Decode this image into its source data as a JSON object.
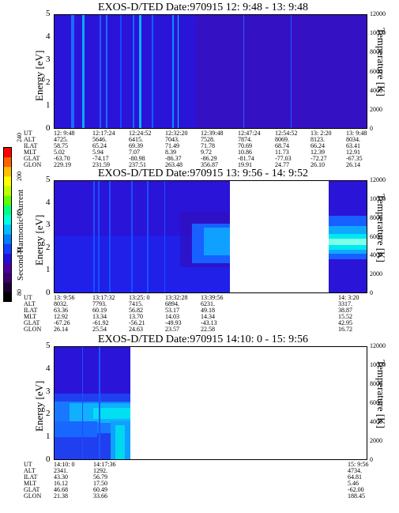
{
  "chart_data": [
    {
      "type": "heatmap",
      "title": "EXOS-D/TED   Date:970915  12: 9:48 - 13: 9:48",
      "ylabel": "Energy [eV]",
      "ylabel_right": "Temperature [K]",
      "ylim": [
        0,
        5
      ],
      "yticks": [
        "0",
        "1",
        "2",
        "3",
        "4",
        "5"
      ],
      "ylim_right": [
        0,
        12000
      ],
      "yticks_right": [
        "0",
        "2000",
        "4000",
        "6000",
        "8000",
        "10000",
        "12000"
      ],
      "orbit_labels": [
        "UT",
        "ALT",
        "ILAT",
        "MLT",
        "GLAT",
        "GLON"
      ],
      "orbit_columns": [
        [
          "12: 9:48",
          "4725.",
          "58.75",
          "5.02",
          "-63.70",
          "229.19"
        ],
        [
          "12:17:24",
          "5646.",
          "65.24",
          "5.94",
          "-74.17",
          "231.59"
        ],
        [
          "12:24:52",
          "6415.",
          "69.39",
          "7.07",
          "-80.98",
          "237.51"
        ],
        [
          "12:32:20",
          "7043.",
          "71.49",
          "8.39",
          "-86.37",
          "263.48"
        ],
        [
          "12:39:48",
          "7528.",
          "71.78",
          "9.72",
          "-86.29",
          "356.87"
        ],
        [
          "12:47:24",
          "7874.",
          "70.69",
          "10.86",
          "-81.74",
          "19.91"
        ],
        [
          "12:54:52",
          "8069.",
          "68.74",
          "11.73",
          "-77.03",
          "24.77"
        ],
        [
          "13: 2:20",
          "8123.",
          "66.24",
          "12.39",
          "-72.27",
          "26.10"
        ],
        [
          "13: 9:48",
          "8034.",
          "63.41",
          "12.91",
          "-67.35",
          "26.14"
        ]
      ]
    },
    {
      "type": "heatmap",
      "title": "EXOS-D/TED   Date:970915  13: 9:56 - 14: 9:52",
      "ylabel": "Energy [eV]",
      "ylabel_right": "Temperature [K]",
      "ylim": [
        0,
        5
      ],
      "yticks": [
        "0",
        "1",
        "2",
        "3",
        "4",
        "5"
      ],
      "ylim_right": [
        0,
        12000
      ],
      "yticks_right": [
        "0",
        "2000",
        "4000",
        "6000",
        "8000",
        "10000",
        "12000"
      ],
      "orbit_labels": [
        "UT",
        "ALT",
        "ILAT",
        "MLT",
        "GLAT",
        "GLON"
      ],
      "orbit_columns": [
        [
          "13: 9:56",
          "8032.",
          "63.36",
          "12.92",
          "-67.26",
          "26.14"
        ],
        [
          "13:17:32",
          "7793.",
          "60.19",
          "13.34",
          "-61.92",
          "25.54"
        ],
        [
          "13:25: 0",
          "7415.",
          "56.82",
          "13.70",
          "-56.21",
          "24.63"
        ],
        [
          "13:32:28",
          "6894.",
          "53.17",
          "14.03",
          "-49.93",
          "23.57"
        ],
        [
          "13:39:56",
          "6231.",
          "49.18",
          "14.34",
          "-43.13",
          "22.58"
        ],
        [
          "14: 3:20",
          "3317.",
          "38.87",
          "15.52",
          "42.95",
          "16.72"
        ]
      ]
    },
    {
      "type": "heatmap",
      "title": "EXOS-D/TED   Date:970915  14:10: 0 - 15: 9:56",
      "ylabel": "Energy [eV]",
      "ylabel_right": "Temperature [K]",
      "ylim": [
        0,
        5
      ],
      "yticks": [
        "0",
        "1",
        "2",
        "3",
        "4",
        "5"
      ],
      "ylim_right": [
        0,
        12000
      ],
      "yticks_right": [
        "0",
        "2000",
        "4000",
        "6000",
        "8000",
        "10000",
        "12000"
      ],
      "orbit_labels": [
        "UT",
        "ALT",
        "ILAT",
        "MLT",
        "GLAT",
        "GLON"
      ],
      "orbit_columns": [
        [
          "14:10: 0",
          "2341.",
          "43.30",
          "16.12",
          "46.68",
          "21.38"
        ],
        [
          "14:17:36",
          "1292.",
          "56.79",
          "17.50",
          "60.49",
          "33.66"
        ],
        [
          "15: 9:56",
          "4734.",
          "64.81",
          "5.46",
          "-62.00",
          "188.45"
        ]
      ]
    }
  ],
  "colorbar": {
    "label": "Second Harmonic Current",
    "ticks": [
      "80",
      "120",
      "160",
      "200",
      "240"
    ],
    "colors": [
      "#000000",
      "#1a0033",
      "#3a0070",
      "#4b00a0",
      "#2010e0",
      "#1040ff",
      "#0080ff",
      "#00c0ff",
      "#00ffe0",
      "#00ff80",
      "#60ff00",
      "#c0ff00",
      "#ffff00",
      "#ffc000",
      "#ff6000",
      "#ff0000"
    ]
  }
}
